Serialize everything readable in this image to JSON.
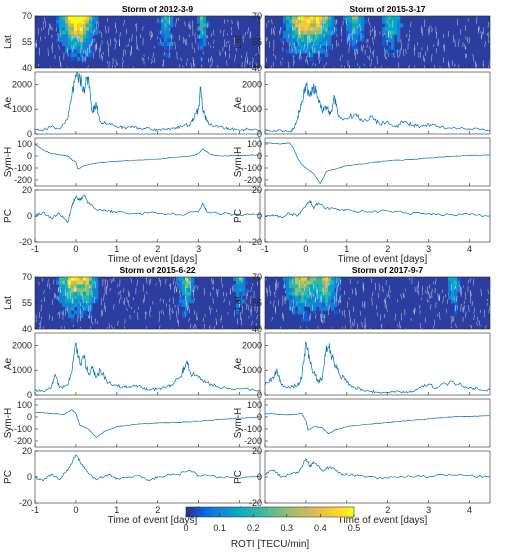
{
  "chart_data": {
    "type": "heatmap",
    "line_color": "#0072BD",
    "panel_ylabels": [
      "Lat",
      "Ae",
      "Sym-H",
      "PC"
    ],
    "lat": {
      "ylim": [
        40,
        70
      ],
      "ticks": [
        "70",
        "55",
        "40"
      ]
    },
    "ae": {
      "ylim": [
        0,
        2500
      ],
      "ticks": [
        "2000",
        "1000",
        "0"
      ]
    },
    "symh": {
      "ylim": [
        -250,
        150
      ],
      "ticks": [
        "100",
        "0",
        "-100",
        "-200"
      ]
    },
    "pc": {
      "ylim": [
        -20,
        20
      ],
      "ticks": [
        "20",
        "0",
        "-20"
      ]
    },
    "xlim": [
      -1,
      4.5
    ],
    "xticks": [
      "-1",
      "0",
      "1",
      "2",
      "3",
      "4"
    ],
    "xlabel": "Time of event [days]",
    "storms": [
      {
        "title": "Storm of 2012-3-9",
        "ae": [
          [
            -1,
            200
          ],
          [
            -0.8,
            150
          ],
          [
            -0.6,
            300
          ],
          [
            -0.4,
            200
          ],
          [
            -0.2,
            600
          ],
          [
            -0.1,
            1500
          ],
          [
            0,
            2300
          ],
          [
            0.1,
            2200
          ],
          [
            0.2,
            1800
          ],
          [
            0.3,
            2300
          ],
          [
            0.4,
            900
          ],
          [
            0.5,
            1200
          ],
          [
            0.6,
            500
          ],
          [
            0.8,
            400
          ],
          [
            1,
            300
          ],
          [
            1.2,
            250
          ],
          [
            1.4,
            300
          ],
          [
            1.6,
            200
          ],
          [
            1.8,
            250
          ],
          [
            2,
            150
          ],
          [
            2.2,
            200
          ],
          [
            2.4,
            250
          ],
          [
            2.6,
            300
          ],
          [
            2.8,
            400
          ],
          [
            2.9,
            700
          ],
          [
            3,
            1000
          ],
          [
            3.05,
            1900
          ],
          [
            3.1,
            1000
          ],
          [
            3.2,
            500
          ],
          [
            3.4,
            300
          ],
          [
            3.6,
            250
          ],
          [
            3.8,
            200
          ],
          [
            4,
            150
          ],
          [
            4.2,
            200
          ],
          [
            4.5,
            150
          ]
        ],
        "symh": [
          [
            -1,
            100
          ],
          [
            -0.8,
            50
          ],
          [
            -0.6,
            20
          ],
          [
            -0.4,
            10
          ],
          [
            -0.2,
            0
          ],
          [
            -0.1,
            -30
          ],
          [
            0,
            -50
          ],
          [
            0.05,
            -110
          ],
          [
            0.2,
            -80
          ],
          [
            0.5,
            -60
          ],
          [
            1,
            -45
          ],
          [
            1.5,
            -35
          ],
          [
            2,
            -25
          ],
          [
            2.5,
            -10
          ],
          [
            2.8,
            0
          ],
          [
            3,
            20
          ],
          [
            3.1,
            60
          ],
          [
            3.3,
            10
          ],
          [
            3.6,
            0
          ],
          [
            4,
            5
          ],
          [
            4.5,
            10
          ]
        ],
        "pc": [
          [
            -1,
            0
          ],
          [
            -0.8,
            3
          ],
          [
            -0.6,
            -2
          ],
          [
            -0.4,
            2
          ],
          [
            -0.2,
            -5
          ],
          [
            -0.1,
            8
          ],
          [
            0,
            15
          ],
          [
            0.1,
            12
          ],
          [
            0.2,
            16
          ],
          [
            0.3,
            10
          ],
          [
            0.5,
            5
          ],
          [
            0.8,
            4
          ],
          [
            1,
            3
          ],
          [
            1.5,
            2
          ],
          [
            2,
            2
          ],
          [
            2.5,
            1
          ],
          [
            3,
            3
          ],
          [
            3.1,
            10
          ],
          [
            3.2,
            3
          ],
          [
            3.6,
            2
          ],
          [
            4,
            1
          ],
          [
            4.5,
            1
          ]
        ],
        "hot": [
          [
            -0.1,
            0.45,
            0.9
          ],
          [
            0.15,
            0.4,
            1
          ],
          [
            2.2,
            0.2,
            0.6
          ],
          [
            3.1,
            0.15,
            0.7
          ]
        ]
      },
      {
        "title": "Storm of 2015-3-17",
        "ae": [
          [
            -1,
            150
          ],
          [
            -0.8,
            100
          ],
          [
            -0.6,
            150
          ],
          [
            -0.4,
            100
          ],
          [
            -0.3,
            200
          ],
          [
            -0.2,
            700
          ],
          [
            -0.1,
            1300
          ],
          [
            0,
            2000
          ],
          [
            0.1,
            1500
          ],
          [
            0.2,
            1900
          ],
          [
            0.3,
            1400
          ],
          [
            0.4,
            900
          ],
          [
            0.5,
            1100
          ],
          [
            0.6,
            800
          ],
          [
            0.7,
            1500
          ],
          [
            0.8,
            700
          ],
          [
            1,
            600
          ],
          [
            1.2,
            800
          ],
          [
            1.4,
            500
          ],
          [
            1.6,
            700
          ],
          [
            1.8,
            400
          ],
          [
            2,
            500
          ],
          [
            2.2,
            300
          ],
          [
            2.4,
            500
          ],
          [
            2.6,
            350
          ],
          [
            2.8,
            300
          ],
          [
            3,
            400
          ],
          [
            3.2,
            300
          ],
          [
            3.5,
            250
          ],
          [
            4,
            200
          ],
          [
            4.5,
            150
          ]
        ],
        "symh": [
          [
            -1,
            110
          ],
          [
            -0.6,
            100
          ],
          [
            -0.4,
            110
          ],
          [
            -0.3,
            60
          ],
          [
            -0.2,
            -20
          ],
          [
            -0.1,
            -70
          ],
          [
            0,
            -100
          ],
          [
            0.2,
            -150
          ],
          [
            0.35,
            -230
          ],
          [
            0.5,
            -130
          ],
          [
            0.8,
            -100
          ],
          [
            1,
            -80
          ],
          [
            1.5,
            -60
          ],
          [
            2,
            -40
          ],
          [
            2.5,
            -30
          ],
          [
            3,
            -15
          ],
          [
            3.5,
            -5
          ],
          [
            4,
            5
          ],
          [
            4.5,
            10
          ]
        ],
        "pc": [
          [
            -1,
            0
          ],
          [
            -0.8,
            1
          ],
          [
            -0.6,
            -1
          ],
          [
            -0.4,
            2
          ],
          [
            -0.2,
            0
          ],
          [
            0,
            8
          ],
          [
            0.1,
            12
          ],
          [
            0.2,
            6
          ],
          [
            0.3,
            10
          ],
          [
            0.5,
            6
          ],
          [
            0.8,
            5
          ],
          [
            1,
            5
          ],
          [
            1.5,
            3
          ],
          [
            2,
            4
          ],
          [
            2.5,
            2
          ],
          [
            3,
            2
          ],
          [
            3.5,
            1
          ],
          [
            4,
            1
          ],
          [
            4.5,
            0
          ]
        ],
        "hot": [
          [
            -0.15,
            0.5,
            1
          ],
          [
            0.3,
            0.5,
            0.9
          ],
          [
            1.2,
            0.3,
            0.6
          ],
          [
            2.1,
            0.3,
            0.6
          ]
        ]
      },
      {
        "title": "Storm of 2015-6-22",
        "ae": [
          [
            -1,
            200
          ],
          [
            -0.8,
            150
          ],
          [
            -0.6,
            300
          ],
          [
            -0.5,
            800
          ],
          [
            -0.4,
            300
          ],
          [
            -0.2,
            400
          ],
          [
            -0.1,
            900
          ],
          [
            0,
            2100
          ],
          [
            0.1,
            1200
          ],
          [
            0.2,
            1500
          ],
          [
            0.3,
            900
          ],
          [
            0.4,
            1100
          ],
          [
            0.5,
            700
          ],
          [
            0.6,
            1000
          ],
          [
            0.8,
            500
          ],
          [
            1,
            400
          ],
          [
            1.2,
            300
          ],
          [
            1.4,
            400
          ],
          [
            1.6,
            300
          ],
          [
            1.8,
            200
          ],
          [
            2,
            250
          ],
          [
            2.2,
            300
          ],
          [
            2.4,
            500
          ],
          [
            2.6,
            900
          ],
          [
            2.7,
            1300
          ],
          [
            2.8,
            900
          ],
          [
            3,
            700
          ],
          [
            3.2,
            500
          ],
          [
            3.5,
            300
          ],
          [
            4,
            250
          ],
          [
            4.5,
            200
          ]
        ],
        "symh": [
          [
            -1,
            40
          ],
          [
            -0.6,
            30
          ],
          [
            -0.3,
            20
          ],
          [
            -0.1,
            60
          ],
          [
            0,
            30
          ],
          [
            0.1,
            -70
          ],
          [
            0.3,
            -100
          ],
          [
            0.5,
            -170
          ],
          [
            0.7,
            -120
          ],
          [
            1,
            -80
          ],
          [
            1.5,
            -60
          ],
          [
            2,
            -50
          ],
          [
            2.5,
            -45
          ],
          [
            3,
            -35
          ],
          [
            3.5,
            -20
          ],
          [
            4,
            -10
          ],
          [
            4.5,
            0
          ]
        ],
        "pc": [
          [
            -1,
            0
          ],
          [
            -0.8,
            -3
          ],
          [
            -0.6,
            2
          ],
          [
            -0.4,
            -2
          ],
          [
            -0.2,
            5
          ],
          [
            0,
            17
          ],
          [
            0.1,
            12
          ],
          [
            0.2,
            8
          ],
          [
            0.3,
            3
          ],
          [
            0.5,
            -2
          ],
          [
            0.8,
            2
          ],
          [
            1,
            -1
          ],
          [
            1.5,
            1
          ],
          [
            1.8,
            -3
          ],
          [
            2,
            0
          ],
          [
            2.5,
            2
          ],
          [
            2.8,
            5
          ],
          [
            3,
            1
          ],
          [
            3.5,
            0
          ],
          [
            4,
            -1
          ],
          [
            4.5,
            0
          ]
        ],
        "hot": [
          [
            -0.1,
            0.45,
            1
          ],
          [
            0.3,
            0.3,
            0.8
          ],
          [
            2.7,
            0.25,
            0.7
          ],
          [
            4,
            0.2,
            0.5
          ]
        ]
      },
      {
        "title": "Storm of 2017-9-7",
        "ae": [
          [
            -1,
            400
          ],
          [
            -0.8,
            700
          ],
          [
            -0.7,
            1000
          ],
          [
            -0.6,
            400
          ],
          [
            -0.4,
            300
          ],
          [
            -0.2,
            400
          ],
          [
            -0.1,
            700
          ],
          [
            0,
            2100
          ],
          [
            0.1,
            1300
          ],
          [
            0.2,
            900
          ],
          [
            0.3,
            500
          ],
          [
            0.4,
            700
          ],
          [
            0.5,
            2000
          ],
          [
            0.6,
            1800
          ],
          [
            0.7,
            1200
          ],
          [
            0.8,
            900
          ],
          [
            1,
            500
          ],
          [
            1.2,
            300
          ],
          [
            1.4,
            200
          ],
          [
            1.6,
            150
          ],
          [
            1.8,
            100
          ],
          [
            2,
            100
          ],
          [
            2.2,
            150
          ],
          [
            2.4,
            100
          ],
          [
            2.6,
            150
          ],
          [
            2.8,
            300
          ],
          [
            3,
            400
          ],
          [
            3.2,
            300
          ],
          [
            3.5,
            500
          ],
          [
            3.8,
            400
          ],
          [
            4,
            300
          ],
          [
            4.2,
            250
          ],
          [
            4.5,
            200
          ]
        ],
        "symh": [
          [
            -1,
            30
          ],
          [
            -0.6,
            20
          ],
          [
            -0.3,
            20
          ],
          [
            -0.1,
            30
          ],
          [
            0,
            -30
          ],
          [
            0.05,
            -110
          ],
          [
            0.2,
            -80
          ],
          [
            0.4,
            -90
          ],
          [
            0.55,
            -140
          ],
          [
            0.7,
            -110
          ],
          [
            1,
            -80
          ],
          [
            1.5,
            -60
          ],
          [
            2,
            -45
          ],
          [
            2.5,
            -30
          ],
          [
            3,
            -15
          ],
          [
            3.5,
            0
          ],
          [
            4,
            5
          ],
          [
            4.5,
            10
          ]
        ],
        "pc": [
          [
            -1,
            2
          ],
          [
            -0.8,
            5
          ],
          [
            -0.6,
            0
          ],
          [
            -0.4,
            2
          ],
          [
            -0.2,
            3
          ],
          [
            0,
            14
          ],
          [
            0.1,
            8
          ],
          [
            0.2,
            11
          ],
          [
            0.4,
            5
          ],
          [
            0.6,
            8
          ],
          [
            0.8,
            3
          ],
          [
            1,
            2
          ],
          [
            1.5,
            0
          ],
          [
            2,
            -1
          ],
          [
            2.5,
            1
          ],
          [
            3,
            0
          ],
          [
            3.5,
            2
          ],
          [
            4,
            1
          ],
          [
            4.5,
            0
          ]
        ],
        "hot": [
          [
            -0.1,
            0.5,
            1
          ],
          [
            0.5,
            0.35,
            0.9
          ],
          [
            3.6,
            0.2,
            0.5
          ]
        ]
      }
    ],
    "colorbar": {
      "colormap": "parula",
      "ticks": [
        "0",
        "0.1",
        "0.2",
        "0.3",
        "0.4",
        "0.5"
      ],
      "label": "ROTI [TECU/min]",
      "range": [
        0,
        0.5
      ]
    }
  }
}
